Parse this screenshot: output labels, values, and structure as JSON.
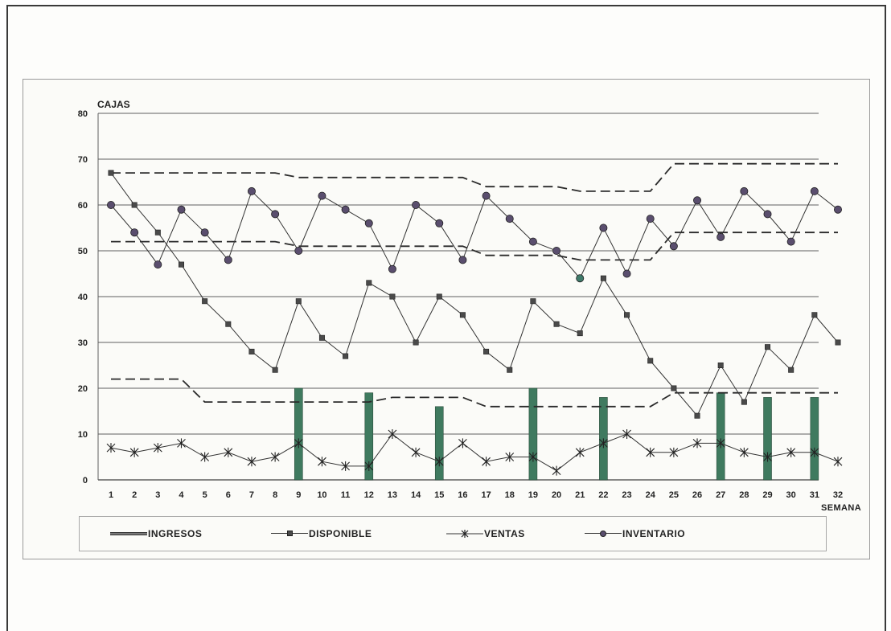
{
  "chart_data": {
    "type": "line",
    "ylabel": "CAJAS",
    "xlabel": "SEMANA",
    "ylim": [
      0,
      80
    ],
    "y_ticks": [
      0,
      10,
      20,
      30,
      40,
      50,
      60,
      70,
      80
    ],
    "x": [
      1,
      2,
      3,
      4,
      5,
      6,
      7,
      8,
      9,
      10,
      11,
      12,
      13,
      14,
      15,
      16,
      17,
      18,
      19,
      20,
      21,
      22,
      23,
      24,
      25,
      26,
      27,
      28,
      29,
      30,
      31,
      32
    ],
    "grid": true,
    "legend_position": "bottom",
    "series": [
      {
        "name": "INGRESOS",
        "type": "bar",
        "color": "#3f7a5f",
        "points": [
          {
            "x": 9,
            "y": 20
          },
          {
            "x": 12,
            "y": 19
          },
          {
            "x": 15,
            "y": 16
          },
          {
            "x": 19,
            "y": 20
          },
          {
            "x": 22,
            "y": 18
          },
          {
            "x": 27,
            "y": 19
          },
          {
            "x": 29,
            "y": 18
          },
          {
            "x": 31,
            "y": 18
          }
        ]
      },
      {
        "name": "DISPONIBLE",
        "type": "line",
        "marker": "square",
        "values": [
          67,
          60,
          54,
          47,
          39,
          34,
          28,
          24,
          39,
          31,
          27,
          43,
          40,
          30,
          40,
          36,
          28,
          24,
          39,
          34,
          32,
          44,
          36,
          26,
          20,
          14,
          25,
          17,
          29,
          24,
          36,
          30
        ]
      },
      {
        "name": "VENTAS",
        "type": "line",
        "marker": "asterisk",
        "values": [
          7,
          6,
          7,
          8,
          5,
          6,
          4,
          5,
          8,
          4,
          3,
          3,
          10,
          6,
          4,
          8,
          4,
          5,
          5,
          2,
          6,
          8,
          10,
          6,
          6,
          8,
          8,
          6,
          5,
          6,
          6,
          4
        ]
      },
      {
        "name": "INVENTARIO",
        "type": "line",
        "marker": "circle",
        "values": [
          60,
          54,
          47,
          59,
          54,
          48,
          63,
          58,
          50,
          62,
          59,
          56,
          46,
          60,
          56,
          48,
          62,
          57,
          52,
          50,
          44,
          55,
          45,
          57,
          51,
          61,
          53,
          63,
          58,
          52,
          63,
          59
        ]
      }
    ],
    "reference_lines": [
      {
        "style": "dashed",
        "points": [
          [
            1,
            67
          ],
          [
            8,
            67
          ],
          [
            9,
            66
          ],
          [
            16,
            66
          ],
          [
            17,
            64
          ],
          [
            20,
            64
          ],
          [
            21,
            63
          ],
          [
            24,
            63
          ],
          [
            25,
            69
          ],
          [
            32,
            69
          ]
        ]
      },
      {
        "style": "dashed",
        "points": [
          [
            1,
            52
          ],
          [
            8,
            52
          ],
          [
            9,
            51
          ],
          [
            16,
            51
          ],
          [
            17,
            49
          ],
          [
            20,
            49
          ],
          [
            21,
            48
          ],
          [
            24,
            48
          ],
          [
            25,
            54
          ],
          [
            32,
            54
          ]
        ]
      },
      {
        "style": "dashed",
        "points": [
          [
            1,
            22
          ],
          [
            4,
            22
          ],
          [
            5,
            17
          ],
          [
            12,
            17
          ],
          [
            13,
            18
          ],
          [
            16,
            18
          ],
          [
            17,
            16
          ],
          [
            24,
            16
          ],
          [
            25,
            19
          ],
          [
            32,
            19
          ]
        ]
      }
    ]
  },
  "legend": {
    "ingresos": "INGRESOS",
    "disponible": "DISPONIBLE",
    "ventas": "VENTAS",
    "inventario": "INVENTARIO"
  }
}
